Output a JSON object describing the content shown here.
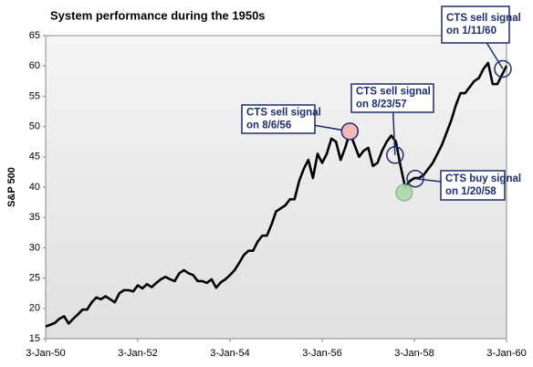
{
  "chart_data": {
    "type": "line",
    "title": "System performance during the 1950s",
    "y_label": "S&P 500",
    "x": [
      1950.0,
      1950.1,
      1950.2,
      1950.3,
      1950.4,
      1950.5,
      1950.6,
      1950.7,
      1950.8,
      1950.9,
      1951.0,
      1951.1,
      1951.2,
      1951.3,
      1951.4,
      1951.5,
      1951.6,
      1951.7,
      1951.8,
      1951.9,
      1952.0,
      1952.1,
      1952.2,
      1952.3,
      1952.4,
      1952.5,
      1952.6,
      1952.7,
      1952.8,
      1952.9,
      1953.0,
      1953.1,
      1953.2,
      1953.3,
      1953.4,
      1953.5,
      1953.6,
      1953.7,
      1953.8,
      1953.9,
      1954.0,
      1954.1,
      1954.2,
      1954.3,
      1954.4,
      1954.5,
      1954.6,
      1954.7,
      1954.8,
      1954.9,
      1955.0,
      1955.1,
      1955.2,
      1955.3,
      1955.4,
      1955.5,
      1955.6,
      1955.7,
      1955.8,
      1955.9,
      1956.0,
      1956.1,
      1956.2,
      1956.3,
      1956.4,
      1956.5,
      1956.6,
      1956.7,
      1956.8,
      1956.9,
      1957.0,
      1957.1,
      1957.2,
      1957.3,
      1957.4,
      1957.5,
      1957.6,
      1957.7,
      1957.8,
      1957.9,
      1958.0,
      1958.1,
      1958.2,
      1958.3,
      1958.4,
      1958.5,
      1958.6,
      1958.7,
      1958.8,
      1958.9,
      1959.0,
      1959.1,
      1959.2,
      1959.3,
      1959.4,
      1959.5,
      1959.6,
      1959.7,
      1959.8,
      1959.9,
      1960.0
    ],
    "series": [
      {
        "color": "#000000",
        "values": [
          17.0,
          17.3,
          17.6,
          18.3,
          18.7,
          17.5,
          18.3,
          19.0,
          19.8,
          19.8,
          21.0,
          21.8,
          21.5,
          22.0,
          21.5,
          21.0,
          22.5,
          23.0,
          23.0,
          22.8,
          23.8,
          23.3,
          24.0,
          23.5,
          24.2,
          24.8,
          25.2,
          24.8,
          24.5,
          25.8,
          26.3,
          25.8,
          25.5,
          24.5,
          24.5,
          24.2,
          24.8,
          23.4,
          24.3,
          24.8,
          25.5,
          26.3,
          27.5,
          28.8,
          29.5,
          29.5,
          31.0,
          32.0,
          32.0,
          33.8,
          36.0,
          36.5,
          37.0,
          38.0,
          38.0,
          41.0,
          43.0,
          44.5,
          41.5,
          45.5,
          44.0,
          45.5,
          48.0,
          47.5,
          44.5,
          46.5,
          49.0,
          47.0,
          45.0,
          46.0,
          46.5,
          43.5,
          44.0,
          46.0,
          47.5,
          48.5,
          47.5,
          43.5,
          40.0,
          41.0,
          41.5,
          41.5,
          42.0,
          43.0,
          44.0,
          45.5,
          47.0,
          49.0,
          51.0,
          53.5,
          55.5,
          55.5,
          56.5,
          57.5,
          58.0,
          59.5,
          60.5,
          57.0,
          57.0,
          58.5,
          60.0
        ]
      }
    ],
    "xlim": [
      1950.0,
      1960.0
    ],
    "xticks": [
      {
        "value": 1950.0,
        "label": "3-Jan-50"
      },
      {
        "value": 1952.0,
        "label": "3-Jan-52"
      },
      {
        "value": 1954.0,
        "label": "3-Jan-54"
      },
      {
        "value": 1956.0,
        "label": "3-Jan-56"
      },
      {
        "value": 1958.0,
        "label": "3-Jan-58"
      },
      {
        "value": 1960.0,
        "label": "3-Jan-60"
      }
    ],
    "ylim": [
      15,
      65
    ],
    "yticks": [
      15,
      20,
      25,
      30,
      35,
      40,
      45,
      50,
      55,
      60,
      65
    ],
    "annotations": [
      {
        "lines": [
          "CTS sell signal",
          "on 8/6/56"
        ],
        "x": 1956.6,
        "y": 49.2,
        "fill": "#f2b9b6"
      },
      {
        "lines": [
          "CTS sell signal",
          "on 8/23/57"
        ],
        "x": 1957.58,
        "y": 45.3
      },
      {
        "lines": [
          "CTS buy signal",
          "on 1/20/58"
        ],
        "x": 1958.02,
        "y": 41.4
      },
      {
        "lines": [
          "CTS sell signal",
          "on 1/11/60"
        ],
        "x": 1959.92,
        "y": 59.5
      }
    ],
    "markers": [
      {
        "x": 1957.78,
        "y": 39.1,
        "fill": "#a8d8a8"
      }
    ]
  }
}
